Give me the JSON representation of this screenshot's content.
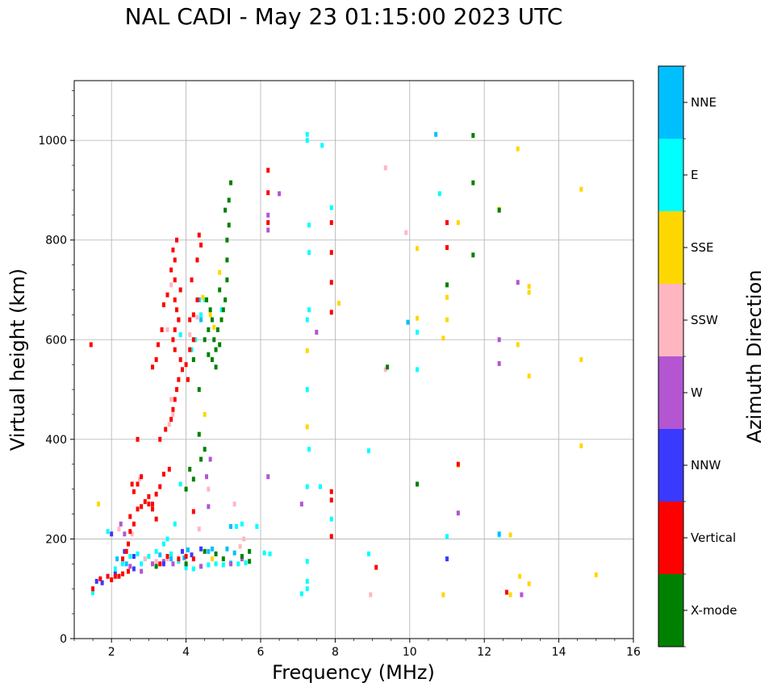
{
  "chart_data": {
    "type": "scatter",
    "title": "NAL CADI - May 23 01:15:00 2023 UTC",
    "xlabel": "Frequency (MHz)",
    "ylabel": "Virtual height (km)",
    "xlim": [
      1,
      16
    ],
    "ylim": [
      0,
      1120
    ],
    "xticks": [
      2,
      4,
      6,
      8,
      10,
      12,
      14,
      16
    ],
    "yticks": [
      0,
      200,
      400,
      600,
      800,
      1000
    ],
    "grid": true,
    "colorbar": {
      "label": "Azimuth Direction",
      "categories": [
        {
          "name": "X-mode",
          "color": "#008000"
        },
        {
          "name": "Vertical",
          "color": "#ff0000"
        },
        {
          "name": "NNW",
          "color": "#3a3aff"
        },
        {
          "name": "W",
          "color": "#b455d2"
        },
        {
          "name": "SSW",
          "color": "#ffb6c1"
        },
        {
          "name": "SSE",
          "color": "#ffd700"
        },
        {
          "name": "E",
          "color": "#00ffff"
        },
        {
          "name": "NNE",
          "color": "#00bfff"
        }
      ]
    },
    "series": [
      {
        "name": "X-mode",
        "points": [
          [
            4.6,
            570
          ],
          [
            4.7,
            560
          ],
          [
            4.8,
            580
          ],
          [
            4.9,
            590
          ],
          [
            4.75,
            600
          ],
          [
            4.85,
            620
          ],
          [
            4.95,
            640
          ],
          [
            5.0,
            660
          ],
          [
            5.05,
            680
          ],
          [
            4.9,
            700
          ],
          [
            5.1,
            720
          ],
          [
            5.1,
            760
          ],
          [
            5.1,
            800
          ],
          [
            5.15,
            830
          ],
          [
            5.05,
            860
          ],
          [
            5.15,
            880
          ],
          [
            5.2,
            915
          ],
          [
            4.8,
            545
          ],
          [
            4.5,
            600
          ],
          [
            4.6,
            620
          ],
          [
            4.7,
            640
          ],
          [
            4.65,
            660
          ],
          [
            4.55,
            680
          ],
          [
            4.0,
            300
          ],
          [
            4.2,
            320
          ],
          [
            4.1,
            340
          ],
          [
            4.4,
            360
          ],
          [
            4.5,
            380
          ],
          [
            4.35,
            410
          ],
          [
            4.35,
            500
          ],
          [
            4.2,
            560
          ],
          [
            3.8,
            640
          ],
          [
            5.0,
            160
          ],
          [
            4.8,
            170
          ],
          [
            4.5,
            175
          ],
          [
            5.7,
            175
          ],
          [
            5.5,
            165
          ],
          [
            5.7,
            155
          ],
          [
            3.2,
            145
          ],
          [
            4.0,
            150
          ],
          [
            10.2,
            310
          ],
          [
            9.4,
            545
          ],
          [
            11.0,
            710
          ],
          [
            11.7,
            770
          ],
          [
            11.7,
            915
          ],
          [
            11.7,
            1010
          ],
          [
            12.4,
            860
          ]
        ]
      },
      {
        "name": "Vertical",
        "points": [
          [
            1.45,
            590
          ],
          [
            1.5,
            100
          ],
          [
            1.7,
            120
          ],
          [
            1.9,
            125
          ],
          [
            2.0,
            118
          ],
          [
            2.1,
            125
          ],
          [
            2.2,
            125
          ],
          [
            2.3,
            130
          ],
          [
            2.45,
            135
          ],
          [
            2.3,
            160
          ],
          [
            2.4,
            175
          ],
          [
            2.45,
            190
          ],
          [
            2.5,
            215
          ],
          [
            2.6,
            230
          ],
          [
            2.5,
            245
          ],
          [
            2.7,
            260
          ],
          [
            2.8,
            265
          ],
          [
            2.9,
            275
          ],
          [
            3.0,
            270
          ],
          [
            3.1,
            270
          ],
          [
            2.6,
            295
          ],
          [
            2.7,
            310
          ],
          [
            2.8,
            325
          ],
          [
            2.55,
            310
          ],
          [
            3.2,
            290
          ],
          [
            3.3,
            305
          ],
          [
            3.4,
            330
          ],
          [
            3.55,
            340
          ],
          [
            2.7,
            400
          ],
          [
            3.0,
            285
          ],
          [
            3.1,
            260
          ],
          [
            3.2,
            240
          ],
          [
            3.3,
            400
          ],
          [
            3.45,
            420
          ],
          [
            3.6,
            440
          ],
          [
            3.65,
            460
          ],
          [
            3.7,
            480
          ],
          [
            3.75,
            500
          ],
          [
            3.8,
            520
          ],
          [
            3.9,
            540
          ],
          [
            4.0,
            550
          ],
          [
            3.85,
            560
          ],
          [
            3.7,
            580
          ],
          [
            3.65,
            600
          ],
          [
            3.7,
            620
          ],
          [
            3.8,
            640
          ],
          [
            3.75,
            660
          ],
          [
            3.7,
            680
          ],
          [
            3.85,
            700
          ],
          [
            3.7,
            720
          ],
          [
            3.6,
            740
          ],
          [
            3.7,
            760
          ],
          [
            3.65,
            780
          ],
          [
            3.75,
            800
          ],
          [
            3.5,
            690
          ],
          [
            3.4,
            670
          ],
          [
            3.35,
            620
          ],
          [
            3.25,
            590
          ],
          [
            3.2,
            560
          ],
          [
            3.1,
            545
          ],
          [
            4.1,
            640
          ],
          [
            4.2,
            650
          ],
          [
            4.3,
            680
          ],
          [
            4.15,
            720
          ],
          [
            4.3,
            760
          ],
          [
            4.4,
            790
          ],
          [
            4.35,
            810
          ],
          [
            4.2,
            600
          ],
          [
            4.05,
            520
          ],
          [
            4.1,
            580
          ],
          [
            3.5,
            165
          ],
          [
            3.8,
            160
          ],
          [
            4.0,
            165
          ],
          [
            4.2,
            160
          ],
          [
            3.3,
            150
          ],
          [
            4.2,
            255
          ],
          [
            6.2,
            940
          ],
          [
            6.2,
            895
          ],
          [
            6.2,
            835
          ],
          [
            7.9,
            835
          ],
          [
            7.9,
            775
          ],
          [
            7.9,
            715
          ],
          [
            7.9,
            655
          ],
          [
            7.9,
            295
          ],
          [
            7.9,
            278
          ],
          [
            7.9,
            205
          ],
          [
            9.1,
            143
          ],
          [
            11.0,
            835
          ],
          [
            11.0,
            785
          ],
          [
            11.3,
            350
          ],
          [
            12.6,
            93
          ]
        ]
      },
      {
        "name": "NNW",
        "points": [
          [
            1.6,
            115
          ],
          [
            1.75,
            112
          ],
          [
            2.1,
            130
          ],
          [
            2.35,
            175
          ],
          [
            2.6,
            165
          ],
          [
            3.4,
            150
          ],
          [
            3.9,
            175
          ],
          [
            4.15,
            168
          ],
          [
            4.4,
            180
          ],
          [
            2.6,
            140
          ],
          [
            2.0,
            210
          ],
          [
            11.0,
            160
          ]
        ]
      },
      {
        "name": "W",
        "points": [
          [
            2.5,
            145
          ],
          [
            2.8,
            135
          ],
          [
            3.1,
            150
          ],
          [
            3.4,
            155
          ],
          [
            3.65,
            150
          ],
          [
            4.4,
            145
          ],
          [
            2.35,
            210
          ],
          [
            2.25,
            230
          ],
          [
            4.65,
            360
          ],
          [
            4.55,
            325
          ],
          [
            4.6,
            265
          ],
          [
            5.2,
            150
          ],
          [
            6.2,
            325
          ],
          [
            6.2,
            820
          ],
          [
            6.2,
            850
          ],
          [
            6.5,
            893
          ],
          [
            7.1,
            270
          ],
          [
            7.5,
            615
          ],
          [
            11.0,
            835
          ],
          [
            11.3,
            252
          ],
          [
            12.4,
            600
          ],
          [
            12.4,
            552
          ],
          [
            12.9,
            715
          ],
          [
            13.0,
            88
          ],
          [
            5.5,
            160
          ]
        ]
      },
      {
        "name": "SSW",
        "points": [
          [
            2.2,
            220
          ],
          [
            2.55,
            210
          ],
          [
            2.75,
            320
          ],
          [
            2.9,
            160
          ],
          [
            3.2,
            155
          ],
          [
            3.5,
            160
          ],
          [
            3.6,
            480
          ],
          [
            3.65,
            450
          ],
          [
            3.55,
            430
          ],
          [
            3.5,
            620
          ],
          [
            3.6,
            710
          ],
          [
            4.35,
            220
          ],
          [
            4.6,
            300
          ],
          [
            4.3,
            645
          ],
          [
            4.1,
            610
          ],
          [
            5.3,
            270
          ],
          [
            5.45,
            185
          ],
          [
            5.55,
            200
          ],
          [
            8.95,
            88
          ],
          [
            9.35,
            945
          ],
          [
            9.35,
            540
          ],
          [
            9.9,
            815
          ],
          [
            11.3,
            252
          ],
          [
            12.4,
            860
          ]
        ]
      },
      {
        "name": "SSE",
        "points": [
          [
            1.65,
            270
          ],
          [
            4.9,
            735
          ],
          [
            4.65,
            650
          ],
          [
            4.75,
            625
          ],
          [
            4.45,
            685
          ],
          [
            4.5,
            450
          ],
          [
            4.7,
            160
          ],
          [
            7.25,
            425
          ],
          [
            7.25,
            578
          ],
          [
            8.1,
            673
          ],
          [
            10.2,
            783
          ],
          [
            10.2,
            643
          ],
          [
            10.9,
            603
          ],
          [
            10.9,
            88
          ],
          [
            11.0,
            685
          ],
          [
            11.0,
            640
          ],
          [
            11.3,
            835
          ],
          [
            11.3,
            348
          ],
          [
            12.4,
            862
          ],
          [
            12.7,
            208
          ],
          [
            12.7,
            88
          ],
          [
            12.9,
            983
          ],
          [
            12.9,
            590
          ],
          [
            12.95,
            125
          ],
          [
            13.2,
            707
          ],
          [
            13.2,
            695
          ],
          [
            13.2,
            527
          ],
          [
            13.2,
            110
          ],
          [
            14.6,
            902
          ],
          [
            14.6,
            560
          ],
          [
            14.6,
            387
          ],
          [
            15.0,
            128
          ]
        ]
      },
      {
        "name": "E",
        "points": [
          [
            1.5,
            92
          ],
          [
            1.9,
            215
          ],
          [
            2.1,
            140
          ],
          [
            2.3,
            150
          ],
          [
            2.5,
            165
          ],
          [
            2.7,
            170
          ],
          [
            2.8,
            150
          ],
          [
            2.9,
            160
          ],
          [
            3.0,
            165
          ],
          [
            3.2,
            175
          ],
          [
            3.4,
            190
          ],
          [
            3.6,
            170
          ],
          [
            3.8,
            155
          ],
          [
            4.0,
            142
          ],
          [
            4.2,
            140
          ],
          [
            4.4,
            145
          ],
          [
            4.6,
            148
          ],
          [
            4.8,
            150
          ],
          [
            5.0,
            148
          ],
          [
            5.2,
            152
          ],
          [
            5.4,
            150
          ],
          [
            5.6,
            152
          ],
          [
            5.35,
            225
          ],
          [
            5.5,
            230
          ],
          [
            5.9,
            225
          ],
          [
            6.1,
            172
          ],
          [
            6.25,
            170
          ],
          [
            3.5,
            200
          ],
          [
            3.85,
            310
          ],
          [
            3.7,
            230
          ],
          [
            4.5,
            680
          ],
          [
            4.4,
            650
          ],
          [
            4.25,
            600
          ],
          [
            3.85,
            610
          ],
          [
            4.15,
            580
          ],
          [
            4.95,
            660
          ],
          [
            7.1,
            90
          ],
          [
            7.25,
            100
          ],
          [
            7.25,
            115
          ],
          [
            7.25,
            155
          ],
          [
            7.25,
            305
          ],
          [
            7.3,
            380
          ],
          [
            7.25,
            500
          ],
          [
            7.25,
            640
          ],
          [
            7.3,
            660
          ],
          [
            7.3,
            775
          ],
          [
            7.3,
            830
          ],
          [
            7.25,
            1000
          ],
          [
            7.25,
            1012
          ],
          [
            7.6,
            305
          ],
          [
            7.65,
            990
          ],
          [
            7.9,
            865
          ],
          [
            7.9,
            240
          ],
          [
            8.9,
            377
          ],
          [
            8.9,
            170
          ],
          [
            10.2,
            540
          ],
          [
            10.2,
            615
          ],
          [
            10.8,
            893
          ],
          [
            11.0,
            205
          ],
          [
            12.4,
            208
          ]
        ]
      },
      {
        "name": "NNE",
        "points": [
          [
            2.15,
            160
          ],
          [
            2.4,
            150
          ],
          [
            3.3,
            168
          ],
          [
            3.6,
            160
          ],
          [
            3.95,
            162
          ],
          [
            4.05,
            178
          ],
          [
            4.6,
            175
          ],
          [
            4.7,
            180
          ],
          [
            5.1,
            180
          ],
          [
            5.2,
            225
          ],
          [
            4.35,
            680
          ],
          [
            4.4,
            640
          ],
          [
            9.95,
            635
          ],
          [
            10.7,
            1012
          ],
          [
            12.4,
            210
          ],
          [
            5.3,
            172
          ]
        ]
      }
    ]
  }
}
